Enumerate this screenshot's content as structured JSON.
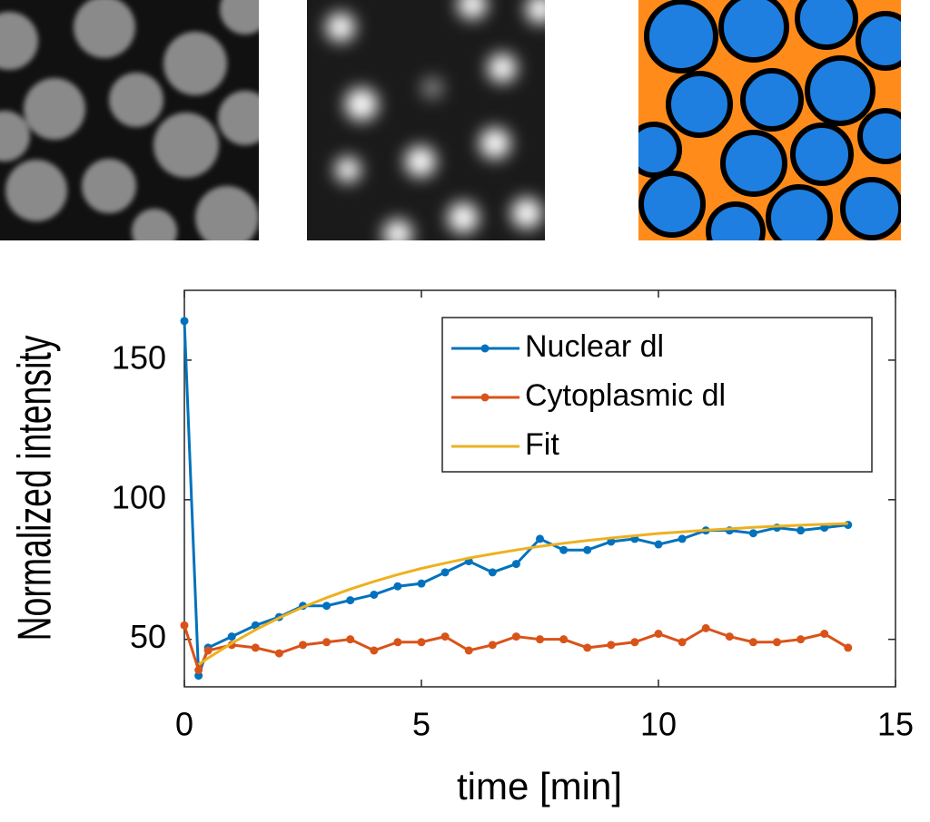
{
  "chart_data": {
    "type": "line",
    "xlabel": "time [min]",
    "ylabel": "Normalized intensity",
    "x": [
      0,
      0.3,
      0.5,
      1,
      1.5,
      2,
      2.5,
      3,
      3.5,
      4,
      4.5,
      5,
      5.5,
      6,
      6.5,
      7,
      7.5,
      8,
      8.5,
      9,
      9.5,
      10,
      10.5,
      11,
      11.5,
      12,
      12.5,
      13,
      13.5,
      14
    ],
    "series": [
      {
        "name": "Nuclear dl",
        "color": "#0072bd",
        "markers": true,
        "values": [
          164,
          37,
          47,
          51,
          55,
          58,
          62,
          62,
          64,
          66,
          69,
          70,
          74,
          78,
          74,
          77,
          86,
          82,
          82,
          85,
          86,
          84,
          86,
          89,
          89,
          88,
          90,
          89,
          90,
          91
        ]
      },
      {
        "name": "Cytoplasmic dl",
        "color": "#d95319",
        "markers": true,
        "values": [
          55,
          39,
          46,
          48,
          47,
          45,
          48,
          49,
          50,
          46,
          49,
          49,
          51,
          46,
          48,
          51,
          50,
          50,
          47,
          48,
          49,
          52,
          49,
          54,
          51,
          49,
          49,
          50,
          52,
          47
        ]
      },
      {
        "name": "Fit",
        "color": "#edb120",
        "markers": false,
        "values": [
          null,
          41,
          43.3,
          48.6,
          53.4,
          57.7,
          61.5,
          64.9,
          68.0,
          70.7,
          73.2,
          75.4,
          77.3,
          79.1,
          80.6,
          82.0,
          83.3,
          84.4,
          85.4,
          86.3,
          87.1,
          87.9,
          88.5,
          89.1,
          89.6,
          90.1,
          90.5,
          90.9,
          91.2,
          91.5
        ]
      }
    ],
    "xlim": [
      0,
      15
    ],
    "xticks": [
      0,
      5,
      10,
      15
    ],
    "ylim": [
      33,
      175
    ],
    "yticks": [
      50,
      100,
      150
    ],
    "grid": false,
    "legend": "top-right"
  }
}
